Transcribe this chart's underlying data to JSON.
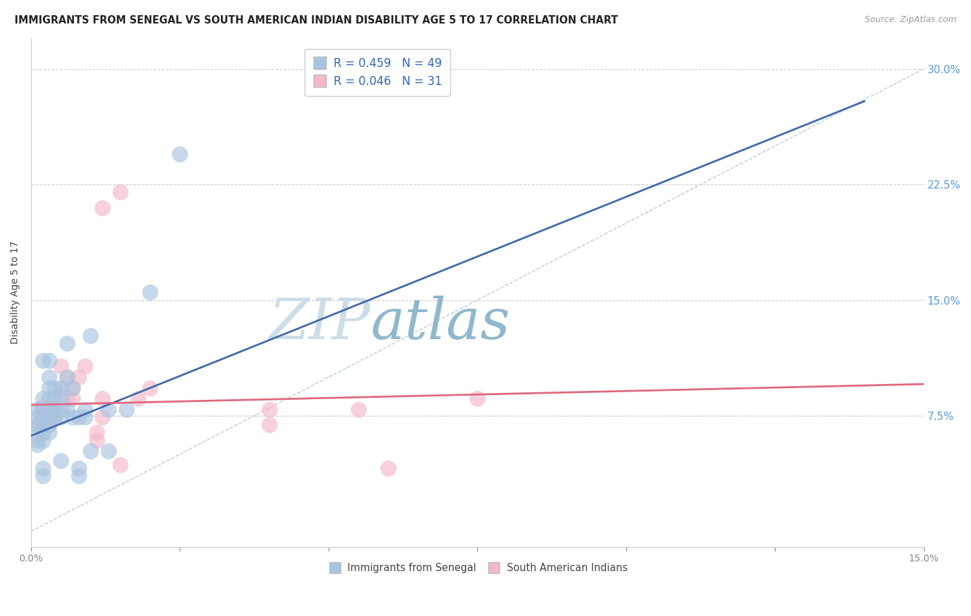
{
  "title": "IMMIGRANTS FROM SENEGAL VS SOUTH AMERICAN INDIAN DISABILITY AGE 5 TO 17 CORRELATION CHART",
  "source": "Source: ZipAtlas.com",
  "ylabel": "Disability Age 5 to 17",
  "yticks": [
    "7.5%",
    "15.0%",
    "22.5%",
    "30.0%"
  ],
  "ytick_vals": [
    0.075,
    0.15,
    0.225,
    0.3
  ],
  "xlim": [
    0.0,
    0.15
  ],
  "ylim": [
    -0.01,
    0.32
  ],
  "legend1_R": "0.459",
  "legend1_N": "49",
  "legend2_R": "0.046",
  "legend2_N": "31",
  "legend_label1": "Immigrants from Senegal",
  "legend_label2": "South American Indians",
  "blue_color": "#a8c4e0",
  "pink_color": "#f4b8c8",
  "line_blue": "#4169aa",
  "line_pink": "#e06880",
  "diag_color": "#b8ccd8",
  "watermark_zip_color": "#ccdde8",
  "watermark_atlas_color": "#90b8cc",
  "blue_slope": 1.55,
  "blue_intercept": 0.062,
  "pink_slope": 0.09,
  "pink_intercept": 0.082,
  "blue_line_xmax": 0.14,
  "xtick_positions": [
    0.0,
    0.025,
    0.05,
    0.075,
    0.1,
    0.125,
    0.15
  ],
  "blue_dots": [
    [
      0.001,
      0.069
    ],
    [
      0.002,
      0.069
    ],
    [
      0.001,
      0.064
    ],
    [
      0.002,
      0.064
    ],
    [
      0.003,
      0.069
    ],
    [
      0.001,
      0.059
    ],
    [
      0.002,
      0.059
    ],
    [
      0.003,
      0.064
    ],
    [
      0.001,
      0.074
    ],
    [
      0.002,
      0.074
    ],
    [
      0.003,
      0.074
    ],
    [
      0.004,
      0.074
    ],
    [
      0.005,
      0.074
    ],
    [
      0.001,
      0.079
    ],
    [
      0.002,
      0.079
    ],
    [
      0.003,
      0.079
    ],
    [
      0.004,
      0.079
    ],
    [
      0.005,
      0.079
    ],
    [
      0.006,
      0.079
    ],
    [
      0.007,
      0.074
    ],
    [
      0.008,
      0.074
    ],
    [
      0.009,
      0.074
    ],
    [
      0.002,
      0.086
    ],
    [
      0.003,
      0.086
    ],
    [
      0.004,
      0.086
    ],
    [
      0.004,
      0.093
    ],
    [
      0.005,
      0.093
    ],
    [
      0.003,
      0.1
    ],
    [
      0.006,
      0.1
    ],
    [
      0.002,
      0.111
    ],
    [
      0.003,
      0.111
    ],
    [
      0.006,
      0.122
    ],
    [
      0.01,
      0.052
    ],
    [
      0.005,
      0.046
    ],
    [
      0.008,
      0.041
    ],
    [
      0.002,
      0.041
    ],
    [
      0.016,
      0.079
    ],
    [
      0.013,
      0.079
    ],
    [
      0.002,
      0.036
    ],
    [
      0.008,
      0.036
    ],
    [
      0.013,
      0.052
    ],
    [
      0.001,
      0.056
    ],
    [
      0.02,
      0.155
    ],
    [
      0.01,
      0.127
    ],
    [
      0.003,
      0.093
    ],
    [
      0.005,
      0.086
    ],
    [
      0.007,
      0.093
    ],
    [
      0.009,
      0.079
    ],
    [
      0.025,
      0.245
    ]
  ],
  "pink_dots": [
    [
      0.001,
      0.069
    ],
    [
      0.002,
      0.069
    ],
    [
      0.003,
      0.069
    ],
    [
      0.002,
      0.074
    ],
    [
      0.003,
      0.074
    ],
    [
      0.004,
      0.074
    ],
    [
      0.002,
      0.081
    ],
    [
      0.003,
      0.081
    ],
    [
      0.004,
      0.081
    ],
    [
      0.006,
      0.086
    ],
    [
      0.007,
      0.086
    ],
    [
      0.005,
      0.093
    ],
    [
      0.007,
      0.093
    ],
    [
      0.006,
      0.1
    ],
    [
      0.008,
      0.1
    ],
    [
      0.005,
      0.107
    ],
    [
      0.009,
      0.107
    ],
    [
      0.012,
      0.086
    ],
    [
      0.012,
      0.074
    ],
    [
      0.011,
      0.064
    ],
    [
      0.011,
      0.059
    ],
    [
      0.018,
      0.086
    ],
    [
      0.02,
      0.093
    ],
    [
      0.04,
      0.079
    ],
    [
      0.04,
      0.069
    ],
    [
      0.055,
      0.079
    ],
    [
      0.06,
      0.041
    ],
    [
      0.075,
      0.086
    ],
    [
      0.012,
      0.21
    ],
    [
      0.015,
      0.22
    ],
    [
      0.015,
      0.043
    ]
  ]
}
